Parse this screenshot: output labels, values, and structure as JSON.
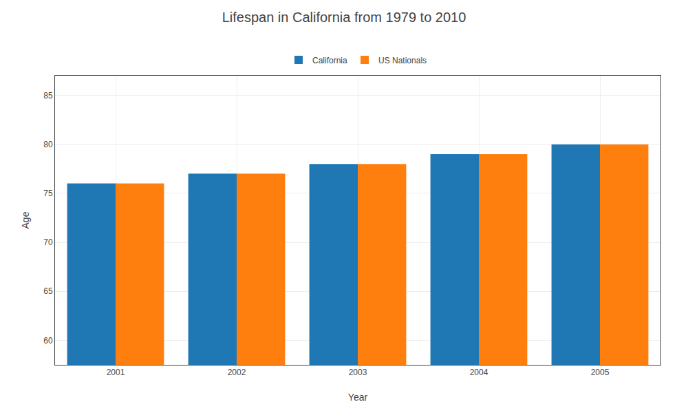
{
  "chart_data": {
    "type": "bar",
    "title": "Lifespan in California from 1979 to 2010",
    "xlabel": "Year",
    "ylabel": "Age",
    "categories": [
      "2001",
      "2002",
      "2003",
      "2004",
      "2005"
    ],
    "series": [
      {
        "name": "California",
        "values": [
          76,
          77,
          78,
          79,
          80
        ]
      },
      {
        "name": "US Nationals",
        "values": [
          76,
          77,
          78,
          79,
          80
        ]
      }
    ],
    "ylim": [
      57.5,
      87
    ],
    "yticks": [
      60,
      65,
      70,
      75,
      80,
      85
    ],
    "grid": true,
    "legend": "top"
  }
}
